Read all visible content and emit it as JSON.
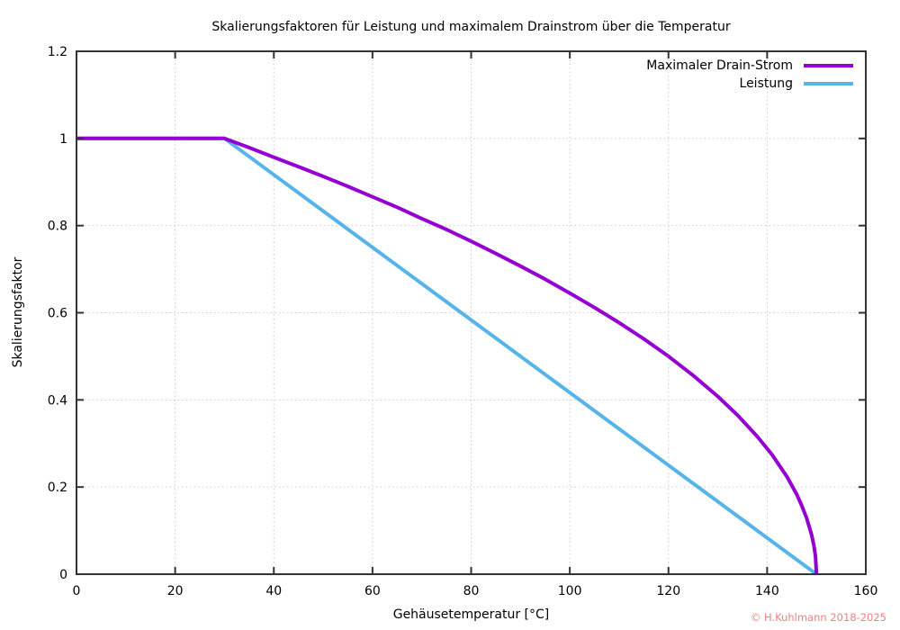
{
  "chart_data": {
    "type": "line",
    "title": "Skalierungsfaktoren für Leistung und maximalem Drainstrom über die Temperatur",
    "xlabel": "Gehäusetemperatur [°C]",
    "ylabel": "Skalierungsfaktor",
    "xlim": [
      0,
      160
    ],
    "ylim": [
      0,
      1.2
    ],
    "x_ticks": [
      0,
      20,
      40,
      60,
      80,
      100,
      120,
      140,
      160
    ],
    "y_ticks": [
      0,
      0.2,
      0.4,
      0.6,
      0.8,
      1,
      1.2
    ],
    "grid": true,
    "legend_position": "top-right-inside",
    "series": [
      {
        "name": "Maximaler Drain-Strom",
        "color": "#9400d3",
        "points": [
          [
            0,
            1
          ],
          [
            30,
            1
          ],
          [
            35,
            0.979
          ],
          [
            40,
            0.957
          ],
          [
            45,
            0.935
          ],
          [
            50,
            0.913
          ],
          [
            55,
            0.89
          ],
          [
            60,
            0.866
          ],
          [
            65,
            0.842
          ],
          [
            70,
            0.816
          ],
          [
            75,
            0.791
          ],
          [
            80,
            0.764
          ],
          [
            85,
            0.736
          ],
          [
            90,
            0.707
          ],
          [
            95,
            0.677
          ],
          [
            100,
            0.645
          ],
          [
            105,
            0.612
          ],
          [
            110,
            0.577
          ],
          [
            115,
            0.54
          ],
          [
            120,
            0.5
          ],
          [
            125,
            0.456
          ],
          [
            130,
            0.408
          ],
          [
            134,
            0.365
          ],
          [
            138,
            0.316
          ],
          [
            141,
            0.274
          ],
          [
            144,
            0.224
          ],
          [
            146,
            0.183
          ],
          [
            147,
            0.158
          ],
          [
            148,
            0.129
          ],
          [
            149,
            0.091
          ],
          [
            149.5,
            0.065
          ],
          [
            149.8,
            0.041
          ],
          [
            150,
            0
          ]
        ]
      },
      {
        "name": "Leistung",
        "color": "#56b4e9",
        "points": [
          [
            0,
            1
          ],
          [
            30,
            1
          ],
          [
            150,
            0
          ]
        ]
      }
    ]
  },
  "styles": {
    "border_color": "#333333",
    "grid_color": "#cccccc",
    "text_color": "#000000"
  },
  "footer": {
    "copyright": "© H.Kuhlmann 2018-2025",
    "copyright_color": "#f08080"
  }
}
